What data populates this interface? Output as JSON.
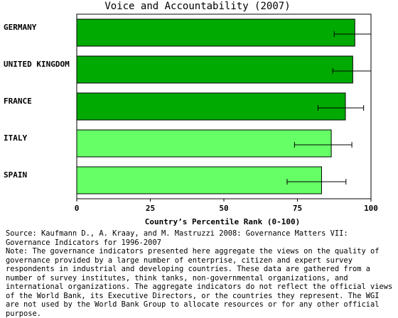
{
  "chart_data": {
    "type": "bar",
    "orientation": "horizontal",
    "title": "Voice and Accountability (2007)",
    "xlabel": "Country’s Percentile Rank (0-100)",
    "ylabel": "",
    "xlim": [
      0,
      100
    ],
    "xticks": [
      "0",
      "25",
      "50",
      "75",
      "100"
    ],
    "categories": [
      "GERMANY",
      "UNITED KINGDOM",
      "FRANCE",
      "ITALY",
      "SPAIN"
    ],
    "values": [
      94.5,
      93.8,
      91.3,
      86.5,
      83.2
    ],
    "error_low": [
      87.5,
      87.0,
      82.0,
      74.0,
      71.5
    ],
    "error_high": [
      100,
      100,
      97.5,
      93.5,
      91.5
    ],
    "bar_colors": [
      "#00aa00",
      "#00aa00",
      "#00aa00",
      "#66ff66",
      "#66ff66"
    ],
    "grid": false,
    "legend": "none"
  },
  "notes": {
    "source": "Source: Kaufmann D., A. Kraay, and M. Mastruzzi 2008: Governance Matters VII: Governance Indicators for 1996-2007",
    "note": "Note: The governance indicators presented here aggregate the views on the quality of governance provided by a large number of enterprise, citizen and expert survey respondents in industrial and developing countries. These data are gathered from a number of survey institutes, think tanks, non-governmental organizations, and international organizations. The aggregate indicators do not reflect the official views of the World Bank, its Executive Directors, or the countries they represent. The WGI are not used by the World Bank Group to allocate resources or for any other official purpose."
  }
}
